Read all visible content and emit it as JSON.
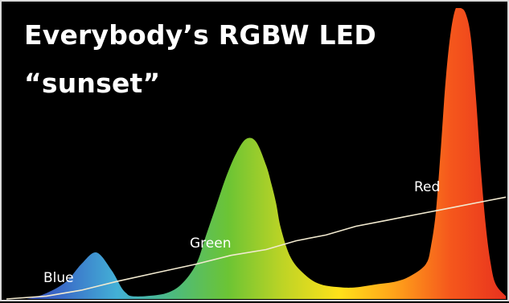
{
  "chart_data": {
    "type": "area",
    "title_lines": [
      "Everybody’s RGBW LED",
      "“sunset”"
    ],
    "xlabel": "",
    "ylabel": "",
    "grid": false,
    "legend": "none",
    "x_domain": [
      0,
      100
    ],
    "y_domain": [
      0,
      100
    ],
    "spectrum": {
      "x": [
        0,
        4,
        8,
        12,
        15,
        18,
        21,
        23,
        24,
        25,
        28,
        32,
        35,
        38,
        40,
        42,
        44,
        46,
        48,
        50,
        52,
        53,
        54,
        55,
        57,
        60,
        63,
        67,
        70,
        74,
        78,
        81,
        84,
        85,
        86,
        87,
        88,
        89,
        90,
        91,
        92,
        93,
        94,
        95,
        96,
        97,
        98,
        100
      ],
      "y": [
        0,
        0,
        2,
        6,
        12,
        16,
        10,
        4,
        2,
        1,
        1,
        2,
        5,
        12,
        22,
        32,
        42,
        50,
        55,
        54,
        46,
        40,
        33,
        24,
        14,
        8,
        5,
        4,
        4,
        5,
        6,
        8,
        12,
        18,
        30,
        52,
        76,
        92,
        100,
        100,
        98,
        90,
        70,
        45,
        25,
        12,
        5,
        1
      ]
    },
    "series": [
      {
        "name": "Red",
        "points": [
          [
            0,
            0
          ],
          [
            8,
            1
          ],
          [
            15,
            3
          ],
          [
            22,
            6
          ],
          [
            30,
            9
          ],
          [
            38,
            12
          ],
          [
            45,
            15
          ],
          [
            52,
            17
          ],
          [
            58,
            20
          ],
          [
            64,
            22
          ],
          [
            70,
            25
          ],
          [
            76,
            27
          ],
          [
            82,
            29
          ],
          [
            88,
            31
          ],
          [
            94,
            33
          ],
          [
            100,
            35
          ]
        ]
      }
    ],
    "labels": {
      "blue": "Blue",
      "green": "Green",
      "red": "Red"
    },
    "colors": {
      "background": "#000000",
      "line": "#f2ead0",
      "label": "#ffffff",
      "gradient_stops": [
        "#3b3fb0",
        "#3a6cc8",
        "#43b0d6",
        "#4cba7e",
        "#6cc434",
        "#bfd425",
        "#ffe11a",
        "#ffa21a",
        "#f5571c",
        "#e8321e"
      ]
    }
  }
}
